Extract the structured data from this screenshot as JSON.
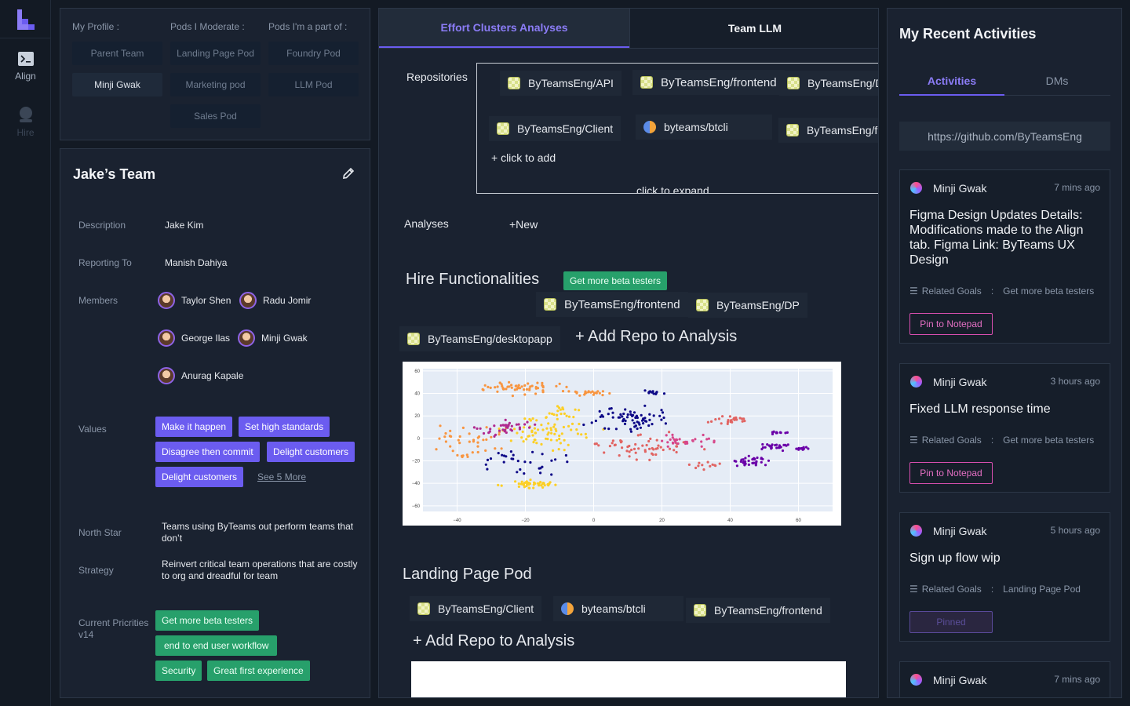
{
  "nav": {
    "items": [
      {
        "label": "Align",
        "icon": "terminal-icon"
      },
      {
        "label": "Hire",
        "icon": "person-icon"
      }
    ]
  },
  "profile": {
    "headers": [
      "My Profile :",
      "Pods I Moderate :",
      "Pods I'm a part of :"
    ],
    "my_profile": [
      "Parent Team",
      "Minji Gwak"
    ],
    "moderate": [
      "Landing Page Pod",
      "Marketing pod",
      "Sales Pod"
    ],
    "part_of": [
      "Foundry Pod",
      "LLM Pod"
    ]
  },
  "team": {
    "title": "Jake’s Team",
    "description_label": "Description",
    "description": "Jake Kim",
    "reporting_label": "Reporting To",
    "reporting": "Manish Dahiya",
    "members_label": "Members",
    "members": [
      "Taylor Shen",
      "Radu Jomir",
      "George Ilas",
      "Minji Gwak",
      "Anurag Kapale"
    ],
    "values_label": "Values",
    "values": [
      "Make it happen",
      "Set high standards",
      "Disagree then commit",
      "Delight customers",
      "Delight customers"
    ],
    "see_more": "See 5 More",
    "north_star_label": "North Star",
    "north_star": "Teams using ByTeams out perform teams that don’t",
    "strategy_label": "Strategy",
    "strategy": "Reinvert critical team operations that are costly to org and dreadful for team",
    "priorities_label": "Current Pricrities v14",
    "priorities": [
      "Get more beta testers",
      "end to end user workflow",
      "Security",
      "Great first experience"
    ]
  },
  "middle": {
    "tabs": [
      "Effort Clusters Analyses",
      "Team LLM"
    ],
    "repositories_label": "Repositories",
    "repositories": [
      "ByTeamsEng/API",
      "ByTeamsEng/frontend",
      "ByTeamsEng/DP",
      "ByTeamsEng/Client",
      "byteams/btcli",
      "ByTeamsEng/frontend"
    ],
    "click_to_add": "+ click to add",
    "click_to_expand": "click to expand",
    "analyses_label": "Analyses",
    "new_label": "+New",
    "section1": {
      "title": "Hire Functionalities",
      "tag": "Get more beta testers",
      "repos": [
        "ByTeamsEng/frontend",
        "ByTeamsEng/DP",
        "ByTeamsEng/desktopapp"
      ],
      "add_repo": "+ Add Repo to Analysis"
    },
    "section2": {
      "title": "Landing Page Pod",
      "repos": [
        "ByTeamsEng/Client",
        "byteams/btcli",
        "ByTeamsEng/frontend"
      ],
      "add_repo": "+ Add Repo to Analysis"
    }
  },
  "chart_data": {
    "type": "scatter",
    "title": "",
    "xlabel": "",
    "ylabel": "",
    "xlim": [
      -50,
      70
    ],
    "ylim": [
      -65,
      62
    ],
    "x_ticks": [
      -40,
      -20,
      0,
      20,
      40,
      60
    ],
    "y_ticks": [
      60,
      40,
      20,
      0,
      -20,
      -40,
      -60
    ],
    "grid": true,
    "clusters": [
      {
        "color": "#f89540",
        "center": [
          -22,
          45
        ],
        "spread": [
          8,
          4
        ],
        "count": 55
      },
      {
        "color": "#f89540",
        "center": [
          -1,
          40
        ],
        "spread": [
          4,
          2
        ],
        "count": 22
      },
      {
        "color": "#f89540",
        "center": [
          -36,
          -3
        ],
        "spread": [
          8,
          10
        ],
        "count": 40
      },
      {
        "color": "#fccf25",
        "center": [
          -14,
          4
        ],
        "spread": [
          10,
          10
        ],
        "count": 70
      },
      {
        "color": "#fccf25",
        "center": [
          -19,
          -41
        ],
        "spread": [
          6,
          3
        ],
        "count": 45
      },
      {
        "color": "#fccf25",
        "center": [
          -9,
          22
        ],
        "spread": [
          6,
          5
        ],
        "count": 20
      },
      {
        "color": "#b02a8f",
        "center": [
          -26,
          10
        ],
        "spread": [
          7,
          6
        ],
        "count": 40
      },
      {
        "color": "#e16462",
        "center": [
          14,
          -8
        ],
        "spread": [
          12,
          8
        ],
        "count": 55
      },
      {
        "color": "#d6478a",
        "center": [
          27,
          -2
        ],
        "spread": [
          6,
          5
        ],
        "count": 30
      },
      {
        "color": "#e16462",
        "center": [
          40,
          17
        ],
        "spread": [
          5,
          4
        ],
        "count": 25
      },
      {
        "color": "#e16462",
        "center": [
          33,
          -24
        ],
        "spread": [
          3,
          3
        ],
        "count": 12
      },
      {
        "color": "#0d0887",
        "center": [
          10,
          18
        ],
        "spread": [
          9,
          9
        ],
        "count": 70
      },
      {
        "color": "#6a00a8",
        "center": [
          46,
          -20
        ],
        "spread": [
          4,
          4
        ],
        "count": 35
      },
      {
        "color": "#6a00a8",
        "center": [
          53,
          -8
        ],
        "spread": [
          5,
          3
        ],
        "count": 25
      },
      {
        "color": "#6a00a8",
        "center": [
          54,
          5
        ],
        "spread": [
          2,
          1
        ],
        "count": 12
      },
      {
        "color": "#6a00a8",
        "center": [
          61,
          -9
        ],
        "spread": [
          2,
          1
        ],
        "count": 12
      },
      {
        "color": "#0d0887",
        "center": [
          17,
          41
        ],
        "spread": [
          3,
          1.5
        ],
        "count": 12
      },
      {
        "color": "#0d0887",
        "center": [
          -20,
          -20
        ],
        "spread": [
          10,
          12
        ],
        "count": 30
      }
    ]
  },
  "activities": {
    "title": "My Recent Activities",
    "tabs": [
      "Activities",
      "DMs"
    ],
    "url": "https://github.com/ByTeamsEng",
    "items": [
      {
        "user": "Minji Gwak",
        "time": "7 mins ago",
        "text": "Figma Design Updates Details: Modifications made to the Align tab. Figma Link: ByTeams UX Design",
        "related_label": "Related Goals",
        "sep": ":",
        "goal": "Get more beta testers",
        "action": "Pin to Notepad"
      },
      {
        "user": "Minji Gwak",
        "time": "3 hours ago",
        "text": "Fixed LLM response time",
        "related_label": "Related Goals",
        "sep": ":",
        "goal": "Get more beta testers",
        "action": "Pin to Notepad"
      },
      {
        "user": "Minji Gwak",
        "time": "5 hours ago",
        "text": "Sign up flow wip",
        "related_label": "Related Goals",
        "sep": ":",
        "goal": "Landing Page Pod",
        "action": "Pinned"
      },
      {
        "user": "Minji Gwak",
        "time": "7 mins ago"
      }
    ]
  }
}
